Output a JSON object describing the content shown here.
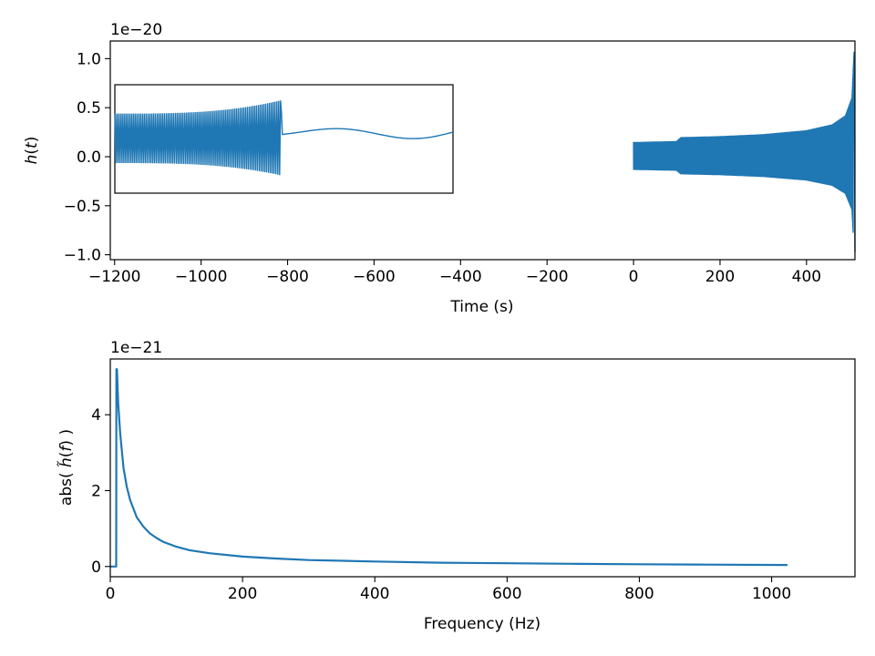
{
  "chart_data": [
    {
      "type": "line",
      "xlabel": "Time (s)",
      "ylabel_parts": [
        "h",
        "(",
        "t",
        ")"
      ],
      "offset_text": "1e−20",
      "xlim": [
        -1210,
        512
      ],
      "ylim": [
        -1.05,
        1.18
      ],
      "xticks": [
        -1200,
        -1000,
        -800,
        -600,
        -400,
        -200,
        0,
        200,
        400
      ],
      "xtick_labels": [
        "−1200",
        "−1000",
        "−800",
        "−600",
        "−400",
        "−200",
        "0",
        "200",
        "400"
      ],
      "yticks": [
        -1.0,
        -0.5,
        0.0,
        0.5,
        1.0
      ],
      "ytick_labels": [
        "−1.0",
        "−0.5",
        "0.0",
        "0.5",
        "1.0"
      ],
      "series": [
        {
          "color": "#1f77b4",
          "x_range": [
            0,
            512
          ],
          "envelope": [
            [
              0,
              0.15
            ],
            [
              100,
              0.16
            ],
            [
              110,
              0.2
            ],
            [
              200,
              0.21
            ],
            [
              300,
              0.23
            ],
            [
              400,
              0.27
            ],
            [
              460,
              0.33
            ],
            [
              490,
              0.42
            ],
            [
              505,
              0.6
            ],
            [
              510,
              1.07
            ],
            [
              512,
              -0.97
            ]
          ]
        }
      ],
      "inset": {
        "x_range": [
          -60,
          512
        ],
        "color": "#1f77b4",
        "chirp_peak": [
          1.0,
          -0.6
        ],
        "ringdown": [
          [
            0.33,
            0.08
          ],
          [
            0.5,
            0.02
          ],
          [
            0.7,
            -0.04
          ],
          [
            0.87,
            0.05
          ],
          [
            1.0,
            0.0
          ]
        ]
      }
    },
    {
      "type": "line",
      "xlabel": "Frequency (Hz)",
      "ylabel_parts": [
        "abs( ",
        "h̃",
        "(",
        "f",
        ") )"
      ],
      "offset_text": "1e−21",
      "xlim": [
        0,
        1126
      ],
      "ylim": [
        -0.27,
        5.47
      ],
      "xticks": [
        0,
        200,
        400,
        600,
        800,
        1000
      ],
      "xtick_labels": [
        "0",
        "200",
        "400",
        "600",
        "800",
        "1000"
      ],
      "yticks": [
        0,
        2,
        4
      ],
      "ytick_labels": [
        "0",
        "2",
        "4"
      ],
      "series": [
        {
          "color": "#1f77b4",
          "points": [
            [
              0,
              0
            ],
            [
              9,
              0
            ],
            [
              9.2,
              5.2
            ],
            [
              10,
              5.2
            ],
            [
              12,
              4.3
            ],
            [
              15,
              3.5
            ],
            [
              20,
              2.6
            ],
            [
              25,
              2.1
            ],
            [
              30,
              1.75
            ],
            [
              40,
              1.3
            ],
            [
              50,
              1.05
            ],
            [
              60,
              0.87
            ],
            [
              70,
              0.75
            ],
            [
              80,
              0.65
            ],
            [
              100,
              0.52
            ],
            [
              120,
              0.43
            ],
            [
              150,
              0.35
            ],
            [
              200,
              0.26
            ],
            [
              250,
              0.21
            ],
            [
              300,
              0.17
            ],
            [
              400,
              0.13
            ],
            [
              500,
              0.1
            ],
            [
              600,
              0.085
            ],
            [
              700,
              0.07
            ],
            [
              800,
              0.06
            ],
            [
              900,
              0.05
            ],
            [
              1024,
              0.04
            ]
          ]
        }
      ]
    }
  ]
}
